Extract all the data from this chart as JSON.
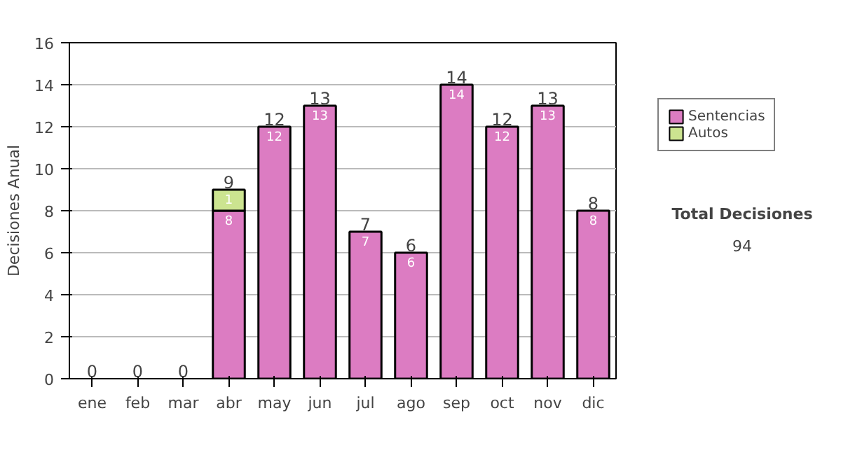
{
  "chart_data": {
    "type": "bar",
    "stacked": true,
    "ylabel": "Decisiones Anual",
    "categories": [
      "ene",
      "feb",
      "mar",
      "abr",
      "may",
      "jun",
      "jul",
      "ago",
      "sep",
      "oct",
      "nov",
      "dic"
    ],
    "series": [
      {
        "name": "Sentencias",
        "color": "#dc7cc2",
        "values": [
          0,
          0,
          0,
          8,
          12,
          13,
          7,
          6,
          14,
          12,
          13,
          8
        ],
        "value_labels": [
          null,
          null,
          null,
          "8",
          "12",
          "13",
          "7",
          "6",
          "14",
          "12",
          "13",
          "8"
        ]
      },
      {
        "name": "Autos",
        "color": "#cce490",
        "values": [
          0,
          0,
          0,
          1,
          0,
          0,
          0,
          0,
          0,
          0,
          0,
          0
        ],
        "value_labels": [
          null,
          null,
          null,
          "1",
          null,
          null,
          null,
          null,
          null,
          null,
          null,
          null
        ]
      }
    ],
    "totals": [
      "0",
      "0",
      "0",
      "9",
      "12",
      "13",
      "7",
      "6",
      "14",
      "12",
      "13",
      "8"
    ],
    "ylim": [
      0,
      16
    ],
    "yticks": [
      0,
      2,
      4,
      6,
      8,
      10,
      12,
      14,
      16
    ],
    "grid": "y",
    "legend": "right",
    "annotations": [
      "Total Decisiones",
      "94"
    ]
  }
}
